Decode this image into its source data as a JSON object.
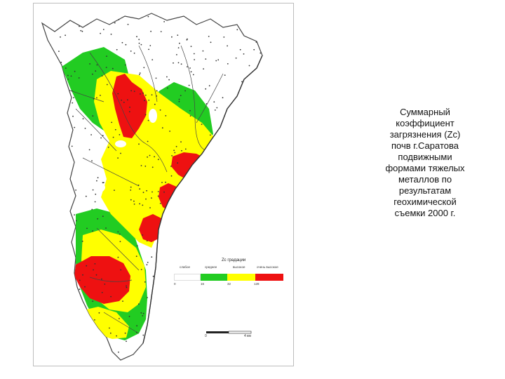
{
  "legend": {
    "title": "Zc градации",
    "classes": [
      {
        "label": "слабое",
        "color": "#ffffff"
      },
      {
        "label": "среднее",
        "color": "#22cc22"
      },
      {
        "label": "высокое",
        "color": "#ffff00"
      },
      {
        "label": "очень высокое",
        "color": "#ee1111"
      }
    ],
    "ticks": [
      "0",
      "16",
      "32",
      "128"
    ]
  },
  "scale": {
    "left_label": "0",
    "right_label": "4 км"
  },
  "caption": {
    "lines": [
      "Суммарный",
      "коэффициент",
      "загрязнения (Zc)",
      "почв г.Саратова",
      "подвижными",
      "формами тяжелых",
      "металлов по",
      "результатам",
      "геохимической",
      "съемки 2000 г."
    ]
  },
  "colors": {
    "weak": "#ffffff",
    "medium": "#22cc22",
    "high": "#ffff00",
    "very_high": "#ee1111",
    "boundary": "#444444",
    "river": "#444444",
    "sample_point": "#333333"
  }
}
